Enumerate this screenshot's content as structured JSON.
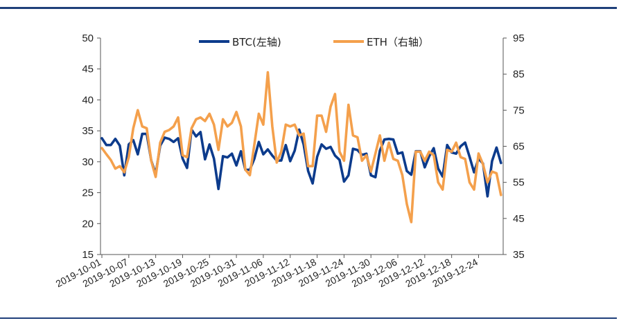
{
  "chart_data": {
    "type": "line",
    "title": "",
    "legend_position": "top-center",
    "grid": false,
    "colors": {
      "btc": "#0c3b8c",
      "eth": "#f4a04c",
      "axis": "#555555"
    },
    "left_axis": {
      "ylim": [
        15,
        50
      ],
      "ticks": [
        15,
        20,
        25,
        30,
        35,
        40,
        45,
        50
      ]
    },
    "right_axis": {
      "ylim": [
        35,
        95
      ],
      "ticks": [
        35,
        45,
        55,
        65,
        75,
        85,
        95
      ]
    },
    "x_start": "2019-10-01",
    "x_ticks": [
      "2019-10-01",
      "2019-10-07",
      "2019-10-13",
      "2019-10-19",
      "2019-10-25",
      "2019-10-31",
      "2019-11-06",
      "2019-11-12",
      "2019-11-18",
      "2019-11-24",
      "2019-11-30",
      "2019-12-06",
      "2019-12-12",
      "2019-12-18",
      "2019-12-24"
    ],
    "series": [
      {
        "name": "BTC(左轴)",
        "axis": "left",
        "values": [
          33.8,
          32.7,
          32.7,
          33.7,
          32.6,
          27.8,
          32.8,
          33.5,
          31.2,
          34.5,
          34.5,
          30.2,
          28.0,
          32.6,
          33.9,
          33.7,
          33.2,
          33.8,
          30.5,
          29.0,
          35.2,
          34.1,
          34.8,
          30.4,
          32.8,
          30.5,
          25.6,
          30.9,
          30.7,
          31.3,
          29.4,
          31.7,
          28.7,
          28.7,
          30.5,
          33.2,
          31.2,
          32.0,
          31.0,
          30.2,
          30.2,
          32.7,
          30.1,
          31.8,
          35.2,
          32.8,
          28.5,
          26.5,
          30.8,
          32.8,
          32.1,
          32.4,
          31.0,
          30.3,
          26.8,
          27.8,
          32.1,
          31.9,
          31.1,
          31.3,
          27.8,
          27.5,
          31.8,
          33.6,
          33.7,
          33.6,
          31.3,
          31.5,
          28.5,
          27.9,
          31.7,
          31.7,
          29.1,
          30.9,
          32.2,
          28.9,
          27.6,
          32.7,
          31.5,
          31.3,
          32.5,
          33.1,
          30.8,
          28.3,
          30.5,
          29.7,
          24.4,
          30.1,
          32.3,
          29.8
        ]
      },
      {
        "name": "ETH（右轴）",
        "axis": "right",
        "values": [
          64.5,
          62.8,
          61.2,
          58.8,
          59.5,
          57.8,
          62.0,
          70.0,
          75.0,
          70.5,
          70.0,
          61.0,
          56.5,
          66.0,
          69.0,
          69.5,
          70.5,
          73.0,
          62.5,
          62.0,
          70.0,
          72.5,
          73.0,
          72.0,
          74.0,
          71.0,
          64.0,
          72.5,
          70.5,
          71.5,
          74.5,
          70.5,
          58.5,
          57.0,
          65.5,
          74.0,
          71.0,
          85.5,
          70.5,
          60.5,
          63.5,
          71.0,
          70.5,
          71.0,
          68.0,
          68.5,
          59.5,
          59.5,
          73.5,
          73.5,
          69.0,
          76.0,
          79.5,
          63.5,
          61.0,
          76.5,
          68.0,
          67.5,
          61.0,
          62.5,
          58.0,
          63.0,
          68.0,
          61.0,
          66.0,
          61.5,
          61.0,
          57.0,
          49.0,
          44.0,
          63.5,
          63.5,
          61.0,
          63.5,
          62.5,
          55.0,
          53.0,
          64.0,
          63.5,
          66.0,
          62.0,
          61.5,
          55.0,
          53.0,
          63.0,
          60.0,
          55.0,
          58.0,
          57.5,
          51.5
        ]
      }
    ]
  }
}
